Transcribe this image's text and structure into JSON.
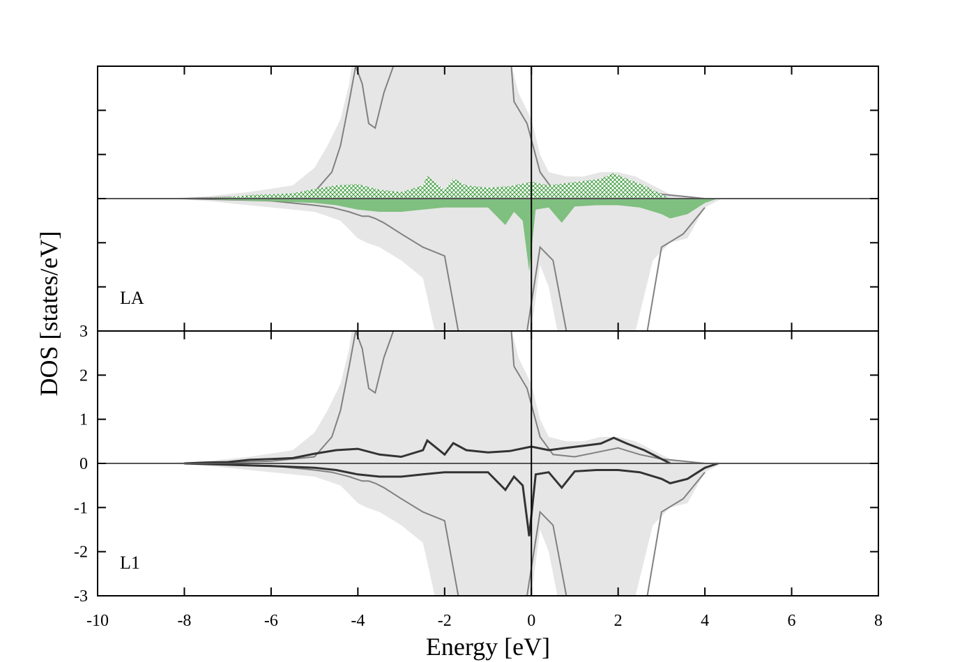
{
  "chart_data": {
    "type": "area",
    "xlabel": "Energy [eV]",
    "ylabel": "DOS [states/eV]",
    "xlim": [
      -10,
      8
    ],
    "ylim": [
      -3,
      3
    ],
    "x_ticks": [
      "-10",
      "-8",
      "-6",
      "-4",
      "-2",
      "0",
      "2",
      "4",
      "6",
      "8"
    ],
    "y_ticks": [
      "-3",
      "-2",
      "-1",
      "0",
      "1",
      "2",
      "3"
    ],
    "fermi_level": 0,
    "legend": "none",
    "grid": false,
    "colors": {
      "total_fill": "#e6e6e6",
      "total_line": "#808080",
      "green_fill": "#7fbf7f",
      "green_hatch": "#3a9a3a",
      "dark_line": "#333333"
    },
    "panels": [
      {
        "label": "LA",
        "y_tick_labels_shown": false,
        "series": [
          {
            "kind": "background-envelope",
            "x": [
              -8.5,
              -7.5,
              -6.5,
              -5.5,
              -5.0,
              -4.7,
              -4.4,
              -4.2,
              -4.0,
              -3.8,
              -3.5,
              -3.0,
              -2.5,
              -2.0,
              -1.5,
              -1.0,
              -0.6,
              -0.3,
              0.0,
              0.2,
              0.4,
              0.8,
              1.2,
              1.6,
              2.0,
              2.4,
              2.8,
              3.2,
              3.6,
              4.0,
              4.4
            ],
            "y_up": [
              0,
              0.05,
              0.15,
              0.3,
              0.7,
              1.2,
              1.8,
              2.6,
              4.0,
              3.6,
              3.5,
              4.0,
              4.0,
              4.0,
              4.0,
              4.0,
              3.6,
              2.4,
              1.8,
              1.0,
              0.6,
              0.5,
              0.5,
              0.6,
              0.6,
              0.5,
              0.3,
              0.1,
              0.05,
              0,
              0
            ],
            "y_down": [
              0,
              -0.05,
              -0.15,
              -0.25,
              -0.3,
              -0.4,
              -0.5,
              -0.7,
              -0.9,
              -1.0,
              -1.1,
              -1.4,
              -1.8,
              -4,
              -4,
              -4,
              -4,
              -4,
              -3.0,
              -1.5,
              -2.0,
              -4,
              -4,
              -4,
              -4,
              -3.0,
              -1.4,
              -1.0,
              -0.9,
              -0.2,
              0
            ]
          },
          {
            "kind": "total-line",
            "x": [
              -8.0,
              -6.0,
              -5.0,
              -4.6,
              -4.4,
              -4.2,
              -4.05,
              -3.9,
              -3.75,
              -3.6,
              -3.4,
              -3.0,
              -2.5,
              -2.0,
              -1.5,
              -1.0,
              -0.5,
              -0.4,
              -0.1,
              0.2,
              0.5,
              1.0,
              1.5,
              2.0,
              2.5,
              3.0,
              3.5,
              4.0
            ],
            "y_up": [
              0,
              0.05,
              0.15,
              0.6,
              1.2,
              2.2,
              3.0,
              2.6,
              1.7,
              1.6,
              2.4,
              3.5,
              3.6,
              3.6,
              3.6,
              3.6,
              3.5,
              2.2,
              1.7,
              0.6,
              0.2,
              0.15,
              0.25,
              0.35,
              0.2,
              0.1,
              0.05,
              0
            ],
            "y_down": [
              0,
              -0.05,
              -0.15,
              -0.2,
              -0.25,
              -0.3,
              -0.35,
              -0.4,
              -0.4,
              -0.45,
              -0.55,
              -0.8,
              -1.1,
              -1.3,
              -4,
              -4,
              -4,
              -4,
              -3.0,
              -1.1,
              -1.4,
              -4,
              -4,
              -4,
              -4,
              -1.1,
              -0.8,
              -0.2
            ]
          },
          {
            "kind": "green-hatched-up",
            "x": [
              -8.0,
              -7.5,
              -7.0,
              -6.5,
              -6.0,
              -5.5,
              -5.0,
              -4.5,
              -4.0,
              -3.5,
              -3.0,
              -2.5,
              -2.4,
              -2.0,
              -1.8,
              -1.5,
              -1.0,
              -0.5,
              0.0,
              0.4,
              0.8,
              1.2,
              1.6,
              1.9,
              2.2,
              2.6,
              3.0,
              3.2
            ],
            "y": [
              0,
              0.02,
              0.03,
              0.08,
              0.1,
              0.12,
              0.22,
              0.3,
              0.33,
              0.2,
              0.15,
              0.3,
              0.52,
              0.2,
              0.46,
              0.3,
              0.25,
              0.28,
              0.38,
              0.3,
              0.35,
              0.4,
              0.45,
              0.58,
              0.45,
              0.3,
              0.1,
              0
            ]
          },
          {
            "kind": "green-filled-down",
            "x": [
              -8.0,
              -7.0,
              -6.0,
              -5.0,
              -4.5,
              -4.0,
              -3.5,
              -3.0,
              -2.5,
              -2.0,
              -1.5,
              -1.0,
              -0.6,
              -0.4,
              -0.2,
              -0.05,
              0.1,
              0.4,
              0.7,
              1.0,
              1.5,
              2.0,
              2.5,
              3.0,
              3.2,
              3.6,
              4.0,
              4.3
            ],
            "y": [
              0,
              -0.03,
              -0.06,
              -0.1,
              -0.15,
              -0.25,
              -0.3,
              -0.3,
              -0.25,
              -0.2,
              -0.2,
              -0.2,
              -0.6,
              -0.3,
              -0.5,
              -1.65,
              -0.25,
              -0.2,
              -0.55,
              -0.18,
              -0.15,
              -0.15,
              -0.2,
              -0.35,
              -0.45,
              -0.35,
              -0.1,
              0
            ]
          }
        ]
      },
      {
        "label": "L1",
        "y_tick_labels_shown": true,
        "series": [
          {
            "kind": "background-envelope",
            "x": [
              -8.5,
              -7.5,
              -6.5,
              -5.5,
              -5.0,
              -4.7,
              -4.4,
              -4.2,
              -4.0,
              -3.8,
              -3.5,
              -3.0,
              -2.5,
              -2.0,
              -1.5,
              -1.0,
              -0.6,
              -0.3,
              0.0,
              0.2,
              0.4,
              0.8,
              1.2,
              1.6,
              2.0,
              2.4,
              2.8,
              3.2,
              3.6,
              4.0,
              4.4
            ],
            "y_up": [
              0,
              0.05,
              0.15,
              0.3,
              0.7,
              1.2,
              1.8,
              2.6,
              4.0,
              3.6,
              3.5,
              4.0,
              4.0,
              4.0,
              4.0,
              4.0,
              3.6,
              2.4,
              1.8,
              1.0,
              0.6,
              0.5,
              0.5,
              0.6,
              0.6,
              0.5,
              0.3,
              0.1,
              0.05,
              0,
              0
            ],
            "y_down": [
              0,
              -0.05,
              -0.15,
              -0.25,
              -0.3,
              -0.4,
              -0.5,
              -0.7,
              -0.9,
              -1.0,
              -1.1,
              -1.4,
              -1.8,
              -4,
              -4,
              -4,
              -4,
              -4,
              -3.0,
              -1.5,
              -2.0,
              -4,
              -4,
              -4,
              -4,
              -3.0,
              -1.4,
              -1.0,
              -0.9,
              -0.2,
              0
            ]
          },
          {
            "kind": "total-line",
            "x": [
              -8.0,
              -6.0,
              -5.0,
              -4.6,
              -4.4,
              -4.2,
              -4.05,
              -3.9,
              -3.75,
              -3.6,
              -3.4,
              -3.0,
              -2.5,
              -2.0,
              -1.5,
              -1.0,
              -0.5,
              -0.4,
              -0.1,
              0.2,
              0.5,
              1.0,
              1.5,
              2.0,
              2.5,
              3.0,
              3.5,
              4.0
            ],
            "y_up": [
              0,
              0.05,
              0.15,
              0.6,
              1.2,
              2.2,
              3.0,
              2.6,
              1.7,
              1.6,
              2.4,
              3.5,
              3.6,
              3.6,
              3.6,
              3.6,
              3.5,
              2.2,
              1.7,
              0.6,
              0.2,
              0.15,
              0.25,
              0.35,
              0.2,
              0.1,
              0.05,
              0
            ],
            "y_down": [
              0,
              -0.05,
              -0.15,
              -0.2,
              -0.25,
              -0.3,
              -0.35,
              -0.4,
              -0.4,
              -0.45,
              -0.55,
              -0.8,
              -1.1,
              -1.3,
              -4,
              -4,
              -4,
              -4,
              -3.0,
              -1.1,
              -1.4,
              -4,
              -4,
              -4,
              -4,
              -1.1,
              -0.8,
              -0.2
            ]
          },
          {
            "kind": "dark-line-up",
            "x": [
              -8.0,
              -7.5,
              -7.0,
              -6.5,
              -6.0,
              -5.5,
              -5.0,
              -4.5,
              -4.0,
              -3.5,
              -3.0,
              -2.5,
              -2.4,
              -2.0,
              -1.8,
              -1.5,
              -1.0,
              -0.5,
              0.0,
              0.4,
              0.8,
              1.2,
              1.6,
              1.9,
              2.2,
              2.6,
              3.0,
              3.2
            ],
            "y": [
              0,
              0.02,
              0.03,
              0.08,
              0.1,
              0.12,
              0.22,
              0.3,
              0.33,
              0.2,
              0.15,
              0.3,
              0.52,
              0.2,
              0.46,
              0.3,
              0.25,
              0.28,
              0.38,
              0.3,
              0.35,
              0.4,
              0.45,
              0.58,
              0.45,
              0.3,
              0.1,
              0
            ]
          },
          {
            "kind": "dark-line-down",
            "x": [
              -8.0,
              -7.0,
              -6.0,
              -5.0,
              -4.5,
              -4.0,
              -3.5,
              -3.0,
              -2.5,
              -2.0,
              -1.5,
              -1.0,
              -0.6,
              -0.4,
              -0.2,
              -0.05,
              0.1,
              0.4,
              0.7,
              1.0,
              1.5,
              2.0,
              2.5,
              3.0,
              3.2,
              3.6,
              4.0,
              4.3
            ],
            "y": [
              0,
              -0.03,
              -0.06,
              -0.1,
              -0.15,
              -0.25,
              -0.3,
              -0.3,
              -0.25,
              -0.2,
              -0.2,
              -0.2,
              -0.6,
              -0.3,
              -0.5,
              -1.65,
              -0.25,
              -0.2,
              -0.55,
              -0.18,
              -0.15,
              -0.15,
              -0.2,
              -0.35,
              -0.45,
              -0.35,
              -0.1,
              0
            ]
          }
        ]
      }
    ]
  }
}
